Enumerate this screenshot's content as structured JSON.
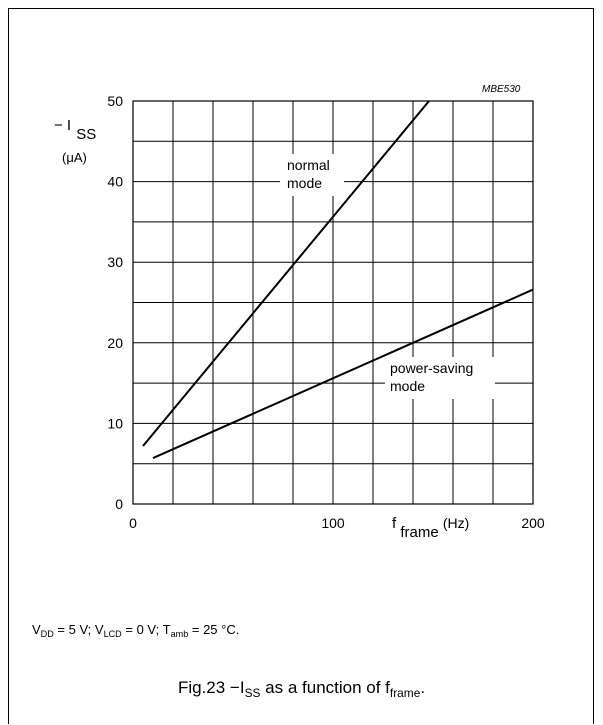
{
  "figure_code": "MBE530",
  "chart_data": {
    "type": "line",
    "title": "",
    "ylabel_main": "− I",
    "ylabel_sub": "SS",
    "yunit": "(μA)",
    "xlabel_main": "f",
    "xlabel_sub": "frame",
    "xunit": "(Hz)",
    "xlim": [
      0,
      200
    ],
    "ylim": [
      0,
      50
    ],
    "x_grid_step": 20,
    "y_grid_step": 5,
    "grid": true,
    "xticks": [
      0,
      100,
      200
    ],
    "yticks": [
      0,
      10,
      20,
      30,
      40,
      50
    ],
    "series": [
      {
        "name": "normal mode",
        "label_lines": [
          "normal",
          "mode"
        ],
        "points": [
          [
            5,
            7.2
          ],
          [
            148,
            50
          ]
        ]
      },
      {
        "name": "power-saving mode",
        "label_lines": [
          "power-saving",
          "mode"
        ],
        "points": [
          [
            10,
            5.7
          ],
          [
            200,
            26.6
          ]
        ]
      }
    ]
  },
  "conditions": {
    "vdd_sym": "V",
    "vdd_sub": "DD",
    "vdd_val": " = 5 V; ",
    "vlcd_sym": "V",
    "vlcd_sub": "LCD",
    "vlcd_val": " = 0 V; ",
    "tamb_sym": "T",
    "tamb_sub": "amb",
    "tamb_val": " = 25 °C."
  },
  "caption": {
    "prefix": "Fig.23  −I",
    "sub1": "SS",
    "middle": " as a function of f",
    "sub2": "frame",
    "suffix": "."
  }
}
